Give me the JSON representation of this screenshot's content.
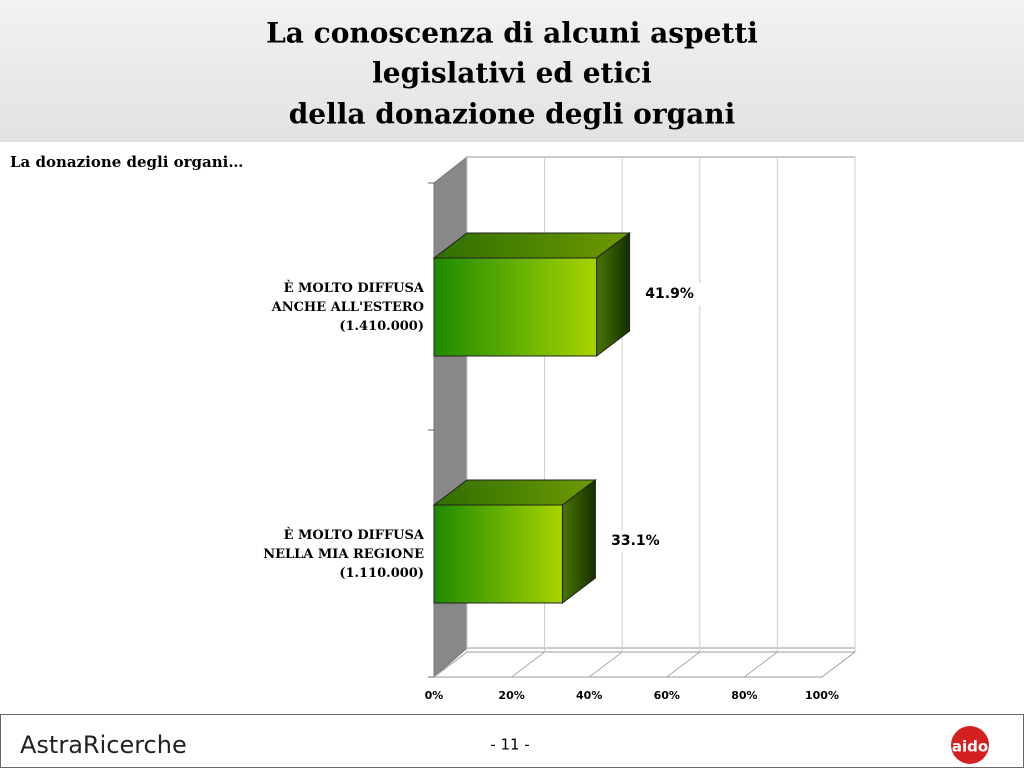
{
  "header": {
    "title_lines": [
      "La conoscenza di alcuni aspetti",
      "legislativi ed etici",
      "della donazione degli organi"
    ]
  },
  "chart_data": {
    "type": "bar3d_horizontal",
    "title": "La donazione degli organi…",
    "categories": [
      "È MOLTO DIFFUSA\nANCHE ALL'ESTERO\n(1.410.000)",
      "È MOLTO DIFFUSA\nNELLA MIA REGIONE\n(1.110.000)"
    ],
    "values": [
      41.9,
      33.1
    ],
    "value_labels": [
      "41.9%",
      "33.1%"
    ],
    "color": "#6cc000",
    "xlim": [
      0,
      100
    ],
    "xticks": [
      {
        "value": 0,
        "label": "0%"
      },
      {
        "value": 20,
        "label": "20%"
      },
      {
        "value": 40,
        "label": "40%"
      },
      {
        "value": 60,
        "label": "60%"
      },
      {
        "value": 80,
        "label": "80%"
      },
      {
        "value": 100,
        "label": "100%"
      }
    ],
    "grid": true
  },
  "footer": {
    "brand": "AstraRicerche",
    "page": "- 11 -",
    "logo": "aido"
  }
}
